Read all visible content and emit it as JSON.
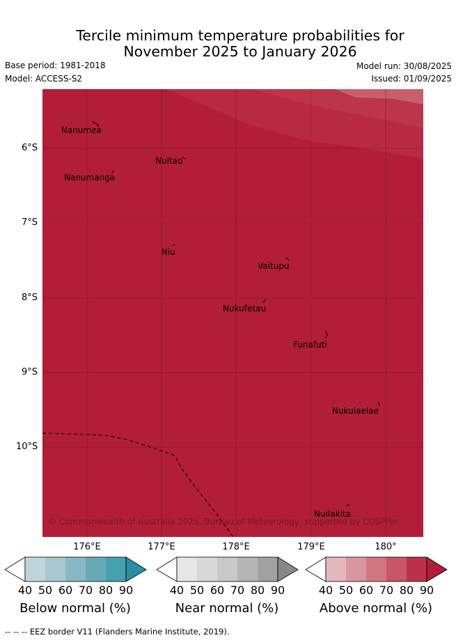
{
  "title": {
    "line1": "Tercile minimum temperature probabilities for",
    "line2": "November 2025 to January 2026"
  },
  "meta": {
    "base_period": "Base period: 1981-2018",
    "model": "Model: ACCESS-S2",
    "model_run": "Model run: 30/08/2025",
    "issued": "Issued: 01/09/2025"
  },
  "map": {
    "extent": {
      "lon_min": 175.4,
      "lon_max": 180.5,
      "lat_min": -11.2,
      "lat_max": -5.2
    },
    "lat_labels": [
      "6°S",
      "7°S",
      "8°S",
      "9°S",
      "10°S"
    ],
    "lon_labels": [
      "176°E",
      "177°E",
      "178°E",
      "179°E",
      "180°"
    ],
    "places": [
      "Nanumea",
      "Nuitao",
      "Nanumanga",
      "Niu",
      "Vaitupu",
      "Nukufetau",
      "Funafuti",
      "Nukulaelae",
      "Nuilakita"
    ],
    "credit": "© Commonwealth of Australia 2025, Bureau of Meteorology, supported by COSPPac",
    "fill_color": "#b21e37"
  },
  "colorbars": [
    {
      "label": "Below normal (%)",
      "ticks": [
        "40",
        "50",
        "60",
        "70",
        "80",
        "90"
      ],
      "colors": [
        "#ffffff",
        "#bfd5dc",
        "#a6c8cf",
        "#88b8c4",
        "#68a9b8",
        "#45a0b0",
        "#2a8ea3"
      ]
    },
    {
      "label": "Near normal (%)",
      "ticks": [
        "40",
        "50",
        "60",
        "70",
        "80",
        "90"
      ],
      "colors": [
        "#ffffff",
        "#e6e6e6",
        "#d8d8d8",
        "#c8c8c8",
        "#b5b5b5",
        "#a0a0a0",
        "#888888"
      ]
    },
    {
      "label": "Above normal (%)",
      "ticks": [
        "40",
        "50",
        "60",
        "70",
        "80",
        "90"
      ],
      "colors": [
        "#ffffff",
        "#e2b7bf",
        "#d8969f",
        "#d17780",
        "#c75666",
        "#bc3147",
        "#b21e37"
      ]
    }
  ],
  "footer": "--  --  -- EEZ border V11 (Flanders Marine Institute, 2019)."
}
